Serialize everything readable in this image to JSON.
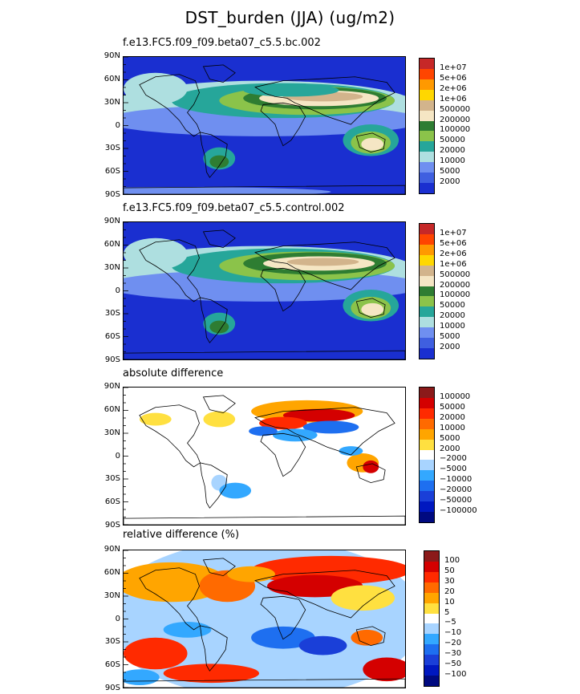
{
  "title": "DST_burden (JJA) (ug/m2)",
  "lat_ticks": [
    "90N",
    "60N",
    "30N",
    "0",
    "30S",
    "60S",
    "90S"
  ],
  "chart_data": [
    {
      "type": "heatmap",
      "title": "f.e13.FC5.f09_f09.beta07_c5.5.bc.002",
      "colorbar_labels": [
        "1e+07",
        "5e+06",
        "2e+06",
        "1e+06",
        "500000",
        "200000",
        "100000",
        "50000",
        "20000",
        "10000",
        "5000",
        "2000"
      ],
      "colorbar_colors": [
        "#c62828",
        "#ff4500",
        "#ff9900",
        "#ffd700",
        "#d2b48c",
        "#f5e6c4",
        "#2e7d32",
        "#8bc34a",
        "#26a69a",
        "#aedfe0",
        "#6f8ff0",
        "#3f5fe0",
        "#1a2fd0"
      ]
    },
    {
      "type": "heatmap",
      "title": "f.e13.FC5.f09_f09.beta07_c5.5.control.002",
      "colorbar_labels": [
        "1e+07",
        "5e+06",
        "2e+06",
        "1e+06",
        "500000",
        "200000",
        "100000",
        "50000",
        "20000",
        "10000",
        "5000",
        "2000"
      ],
      "colorbar_colors": [
        "#c62828",
        "#ff4500",
        "#ff9900",
        "#ffd700",
        "#d2b48c",
        "#f5e6c4",
        "#2e7d32",
        "#8bc34a",
        "#26a69a",
        "#aedfe0",
        "#6f8ff0",
        "#3f5fe0",
        "#1a2fd0"
      ]
    },
    {
      "type": "heatmap",
      "title": "absolute difference",
      "colorbar_labels": [
        "100000",
        "50000",
        "20000",
        "10000",
        "5000",
        "2000",
        "−2000",
        "−5000",
        "−10000",
        "−20000",
        "−50000",
        "−100000"
      ],
      "colorbar_colors": [
        "#8b1a1a",
        "#d40000",
        "#ff2a00",
        "#ff6a00",
        "#ffa500",
        "#ffe040",
        "#ffffff",
        "#a8d4ff",
        "#33a8ff",
        "#1e6ff0",
        "#1a3fd8",
        "#0018c0",
        "#000a80"
      ]
    },
    {
      "type": "heatmap",
      "title": "relative difference (%)",
      "colorbar_labels": [
        "100",
        "50",
        "30",
        "20",
        "10",
        "5",
        "−5",
        "−10",
        "−20",
        "−30",
        "−50",
        "−100"
      ],
      "colorbar_colors": [
        "#8b1a1a",
        "#d40000",
        "#ff2a00",
        "#ff6a00",
        "#ffa500",
        "#ffe040",
        "#ffffff",
        "#a8d4ff",
        "#33a8ff",
        "#1e6ff0",
        "#1a3fd8",
        "#0018c0",
        "#000a80"
      ]
    }
  ]
}
